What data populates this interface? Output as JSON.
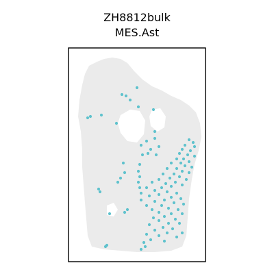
{
  "chart_data": {
    "type": "scatter",
    "title": [
      "ZH8812bulk",
      "MES.Ast"
    ],
    "xlabel": "",
    "ylabel": "",
    "axes_ticks": false,
    "grid": false,
    "legend": "none",
    "colors": {
      "background_spots": "#ebebeb",
      "highlight_spots": "#5fc2cd",
      "frame": "#000000"
    },
    "tissue_outline": [
      [
        130,
        96
      ],
      [
        142,
        90
      ],
      [
        152,
        86
      ],
      [
        164,
        84
      ],
      [
        176,
        86
      ],
      [
        186,
        92
      ],
      [
        196,
        104
      ],
      [
        208,
        116
      ],
      [
        222,
        126
      ],
      [
        236,
        132
      ],
      [
        250,
        140
      ],
      [
        264,
        146
      ],
      [
        276,
        154
      ],
      [
        286,
        164
      ],
      [
        292,
        180
      ],
      [
        294,
        200
      ],
      [
        290,
        220
      ],
      [
        284,
        240
      ],
      [
        280,
        262
      ],
      [
        276,
        290
      ],
      [
        274,
        318
      ],
      [
        272,
        344
      ],
      [
        266,
        360
      ],
      [
        250,
        366
      ],
      [
        226,
        368
      ],
      [
        200,
        368
      ],
      [
        176,
        366
      ],
      [
        152,
        364
      ],
      [
        134,
        360
      ],
      [
        128,
        344
      ],
      [
        126,
        320
      ],
      [
        124,
        296
      ],
      [
        122,
        270
      ],
      [
        120,
        244
      ],
      [
        120,
        218
      ],
      [
        118,
        192
      ],
      [
        114,
        170
      ],
      [
        116,
        146
      ],
      [
        120,
        124
      ],
      [
        124,
        108
      ]
    ],
    "tissue_holes": [
      [
        [
          176,
          168
        ],
        [
          190,
          160
        ],
        [
          204,
          162
        ],
        [
          212,
          176
        ],
        [
          210,
          196
        ],
        [
          200,
          208
        ],
        [
          186,
          206
        ],
        [
          176,
          194
        ],
        [
          172,
          180
        ]
      ],
      [
        [
          222,
          160
        ],
        [
          234,
          158
        ],
        [
          242,
          170
        ],
        [
          240,
          186
        ],
        [
          230,
          192
        ],
        [
          220,
          184
        ],
        [
          218,
          170
        ]
      ],
      [
        [
          156,
          300
        ],
        [
          166,
          296
        ],
        [
          172,
          306
        ],
        [
          166,
          316
        ],
        [
          156,
          314
        ]
      ]
    ],
    "highlight_points": [
      [
        178,
        138
      ],
      [
        184,
        140
      ],
      [
        200,
        128
      ],
      [
        190,
        146
      ],
      [
        202,
        156
      ],
      [
        224,
        160
      ],
      [
        128,
        172
      ],
      [
        132,
        170
      ],
      [
        148,
        168
      ],
      [
        170,
        180
      ],
      [
        226,
        192
      ],
      [
        226,
        202
      ],
      [
        214,
        206
      ],
      [
        206,
        212
      ],
      [
        232,
        214
      ],
      [
        220,
        218
      ],
      [
        208,
        226
      ],
      [
        216,
        224
      ],
      [
        228,
        226
      ],
      [
        276,
        204
      ],
      [
        282,
        208
      ],
      [
        270,
        212
      ],
      [
        284,
        214
      ],
      [
        266,
        218
      ],
      [
        278,
        220
      ],
      [
        262,
        224
      ],
      [
        274,
        226
      ],
      [
        284,
        228
      ],
      [
        268,
        232
      ],
      [
        258,
        232
      ],
      [
        276,
        236
      ],
      [
        264,
        238
      ],
      [
        250,
        238
      ],
      [
        270,
        242
      ],
      [
        280,
        244
      ],
      [
        258,
        246
      ],
      [
        244,
        246
      ],
      [
        266,
        250
      ],
      [
        276,
        252
      ],
      [
        254,
        254
      ],
      [
        238,
        254
      ],
      [
        262,
        258
      ],
      [
        248,
        260
      ],
      [
        272,
        262
      ],
      [
        232,
        262
      ],
      [
        256,
        266
      ],
      [
        242,
        268
      ],
      [
        222,
        266
      ],
      [
        266,
        270
      ],
      [
        250,
        272
      ],
      [
        236,
        274
      ],
      [
        214,
        274
      ],
      [
        226,
        278
      ],
      [
        244,
        280
      ],
      [
        258,
        282
      ],
      [
        206,
        282
      ],
      [
        232,
        284
      ],
      [
        218,
        286
      ],
      [
        250,
        288
      ],
      [
        264,
        290
      ],
      [
        240,
        292
      ],
      [
        206,
        292
      ],
      [
        226,
        294
      ],
      [
        254,
        296
      ],
      [
        268,
        298
      ],
      [
        214,
        300
      ],
      [
        236,
        300
      ],
      [
        246,
        304
      ],
      [
        260,
        306
      ],
      [
        222,
        306
      ],
      [
        232,
        310
      ],
      [
        250,
        312
      ],
      [
        266,
        312
      ],
      [
        240,
        316
      ],
      [
        224,
        318
      ],
      [
        256,
        320
      ],
      [
        232,
        322
      ],
      [
        246,
        326
      ],
      [
        262,
        326
      ],
      [
        218,
        328
      ],
      [
        238,
        332
      ],
      [
        252,
        334
      ],
      [
        226,
        336
      ],
      [
        244,
        340
      ],
      [
        266,
        340
      ],
      [
        214,
        342
      ],
      [
        232,
        344
      ],
      [
        220,
        350
      ],
      [
        210,
        354
      ],
      [
        240,
        352
      ],
      [
        212,
        360
      ],
      [
        206,
        364
      ],
      [
        258,
        346
      ],
      [
        204,
        240
      ],
      [
        202,
        250
      ],
      [
        204,
        258
      ],
      [
        202,
        266
      ],
      [
        204,
        274
      ],
      [
        180,
        238
      ],
      [
        182,
        252
      ],
      [
        176,
        260
      ],
      [
        172,
        266
      ],
      [
        144,
        276
      ],
      [
        146,
        280
      ],
      [
        186,
        306
      ],
      [
        182,
        310
      ],
      [
        160,
        312
      ],
      [
        154,
        360
      ],
      [
        156,
        358
      ]
    ]
  }
}
